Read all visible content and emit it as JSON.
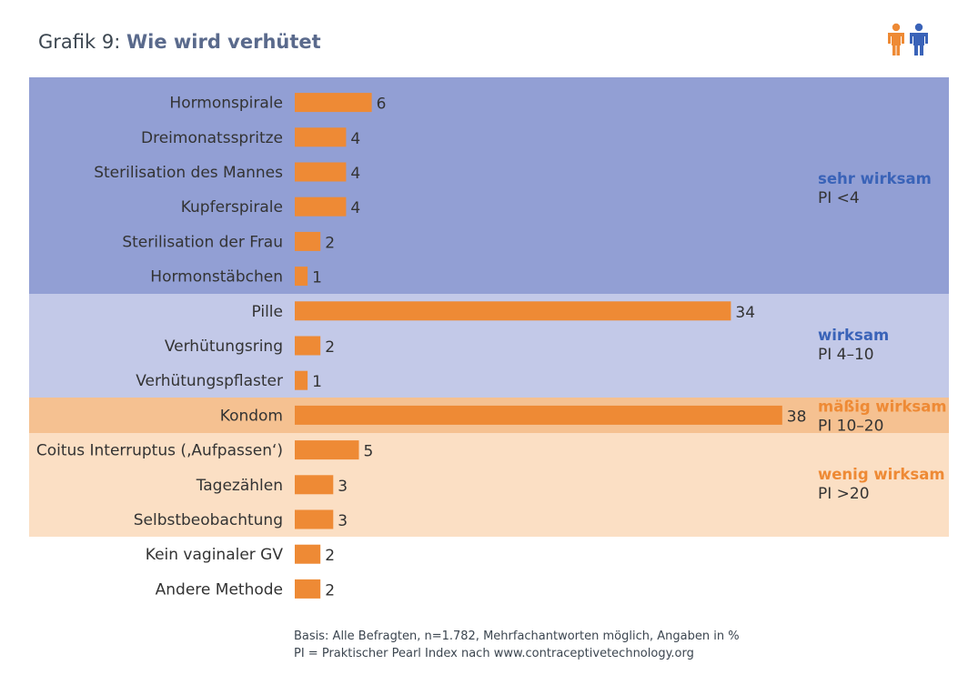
{
  "title": {
    "prefix": "Grafik 9:",
    "main": "Wie wird verhütet"
  },
  "logo_icon": "two-people-icon",
  "colors": {
    "bar": "#ee8a35",
    "band_sehr_wirksam": "#929fd4",
    "band_wirksam": "#c3c9e8",
    "band_maessig_wirksam": "#f5c191",
    "band_wenig_wirksam": "#fbdfc4",
    "label_blue": "#3a63b8",
    "label_orange": "#ee8a35",
    "text": "#333333"
  },
  "chart_data": {
    "type": "bar",
    "orientation": "horizontal",
    "categories": [
      "Hormonspirale",
      "Dreimonatsspritze",
      "Sterilisation des Mannes",
      "Kupferspirale",
      "Sterilisation der Frau",
      "Hormonstäbchen",
      "Pille",
      "Verhütungsring",
      "Verhütungspflaster",
      "Kondom",
      "Coitus Interruptus (‚Aufpassen‘)",
      "Tagezählen",
      "Selbstbeobachtung",
      "Kein vaginaler GV",
      "Andere Methode"
    ],
    "values": [
      6,
      4,
      4,
      4,
      2,
      1,
      34,
      2,
      1,
      38,
      5,
      3,
      3,
      2,
      2
    ],
    "xlim": [
      0,
      38
    ],
    "unit": "%",
    "groups": [
      {
        "name": "sehr wirksam",
        "pi": "PI <4",
        "categories_from": 0,
        "categories_to": 5,
        "band_color": "#929fd4",
        "label_color": "#3a63b8"
      },
      {
        "name": "wirksam",
        "pi": "PI 4–10",
        "categories_from": 6,
        "categories_to": 8,
        "band_color": "#c3c9e8",
        "label_color": "#3a63b8"
      },
      {
        "name": "mäßig wirksam",
        "pi": "PI 10–20",
        "categories_from": 9,
        "categories_to": 9,
        "band_color": "#f5c191",
        "label_color": "#ee8a35"
      },
      {
        "name": "wenig wirksam",
        "pi": "PI >20",
        "categories_from": 10,
        "categories_to": 12,
        "band_color": "#fbdfc4",
        "label_color": "#ee8a35"
      }
    ]
  },
  "footnote": {
    "line1": "Basis: Alle Befragten, n=1.782, Mehrfachantworten möglich, Angaben in %",
    "line2": "PI = Praktischer Pearl Index nach www.contraceptivetechnology.org"
  }
}
